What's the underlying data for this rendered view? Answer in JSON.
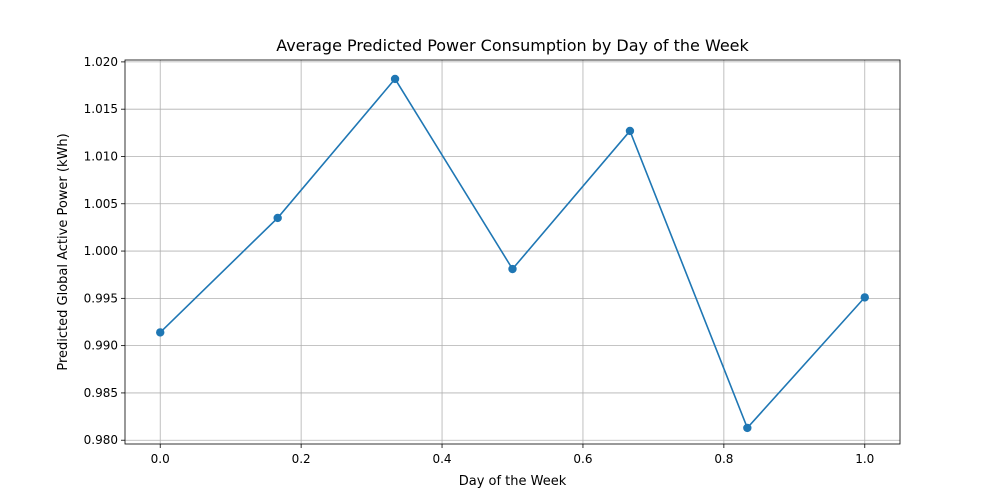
{
  "chart_data": {
    "type": "line",
    "title": "Average Predicted Power Consumption by Day of the Week",
    "xlabel": "Day of the Week",
    "ylabel": "Predicted Global Active Power (kWh)",
    "xlim": [
      -0.05,
      1.05
    ],
    "ylim": [
      0.9796,
      1.0202
    ],
    "xticks": [
      0.0,
      0.2,
      0.4,
      0.6,
      0.8,
      1.0
    ],
    "xtick_labels": [
      "0.0",
      "0.2",
      "0.4",
      "0.6",
      "0.8",
      "1.0"
    ],
    "yticks": [
      0.98,
      0.985,
      0.99,
      0.995,
      1.0,
      1.005,
      1.01,
      1.015,
      1.02
    ],
    "ytick_labels": [
      "0.980",
      "0.985",
      "0.990",
      "0.995",
      "1.000",
      "1.005",
      "1.010",
      "1.015",
      "1.020"
    ],
    "grid": true,
    "series": [
      {
        "color": "#1f77b4",
        "marker": "circle",
        "x": [
          0.0,
          0.1667,
          0.3333,
          0.5,
          0.6667,
          0.8333,
          1.0
        ],
        "y": [
          0.9914,
          1.0035,
          1.0182,
          0.9981,
          1.0127,
          0.9813,
          0.9951
        ]
      }
    ]
  }
}
